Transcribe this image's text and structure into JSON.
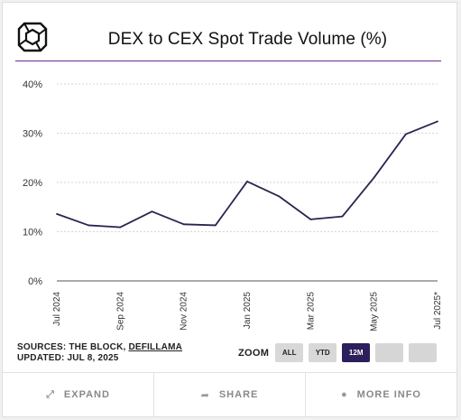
{
  "header": {
    "title": "DEX to CEX Spot Trade Volume (%)",
    "logo_icon": "the-block-cube-logo"
  },
  "chart_data": {
    "type": "line",
    "title": "DEX to CEX Spot Trade Volume (%)",
    "x": [
      "Jul 2024",
      "Aug 2024",
      "Sep 2024",
      "Oct 2024",
      "Nov 2024",
      "Dec 2024",
      "Jan 2025",
      "Feb 2025",
      "Mar 2025",
      "Apr 2025",
      "May 2025",
      "Jun 2025",
      "Jul 2025"
    ],
    "xtick_labels": [
      "Jul 2024",
      "Sep 2024",
      "Nov 2024",
      "Jan 2025",
      "Mar 2025",
      "May 2025",
      "Jul 2025*"
    ],
    "series": [
      {
        "values": [
          13.6,
          11.3,
          10.9,
          14.1,
          11.5,
          11.3,
          20.2,
          17.2,
          12.5,
          13.1,
          21.0,
          29.8,
          32.4
        ]
      }
    ],
    "yticks": [
      "0%",
      "10%",
      "20%",
      "30%",
      "40%"
    ],
    "ylim": [
      0,
      40
    ],
    "grid": true,
    "line_color": "#2b2450"
  },
  "footer": {
    "sources_label": "SOURCES: THE BLOCK, ",
    "sources_link": "DEFILLAMA",
    "updated": "UPDATED: JUL 8, 2025"
  },
  "zoom": {
    "label": "ZOOM",
    "buttons": [
      "ALL",
      "YTD",
      "12M",
      "",
      ""
    ],
    "active": "12M"
  },
  "actions": {
    "expand": "EXPAND",
    "share": "SHARE",
    "more_info": "MORE INFO"
  }
}
